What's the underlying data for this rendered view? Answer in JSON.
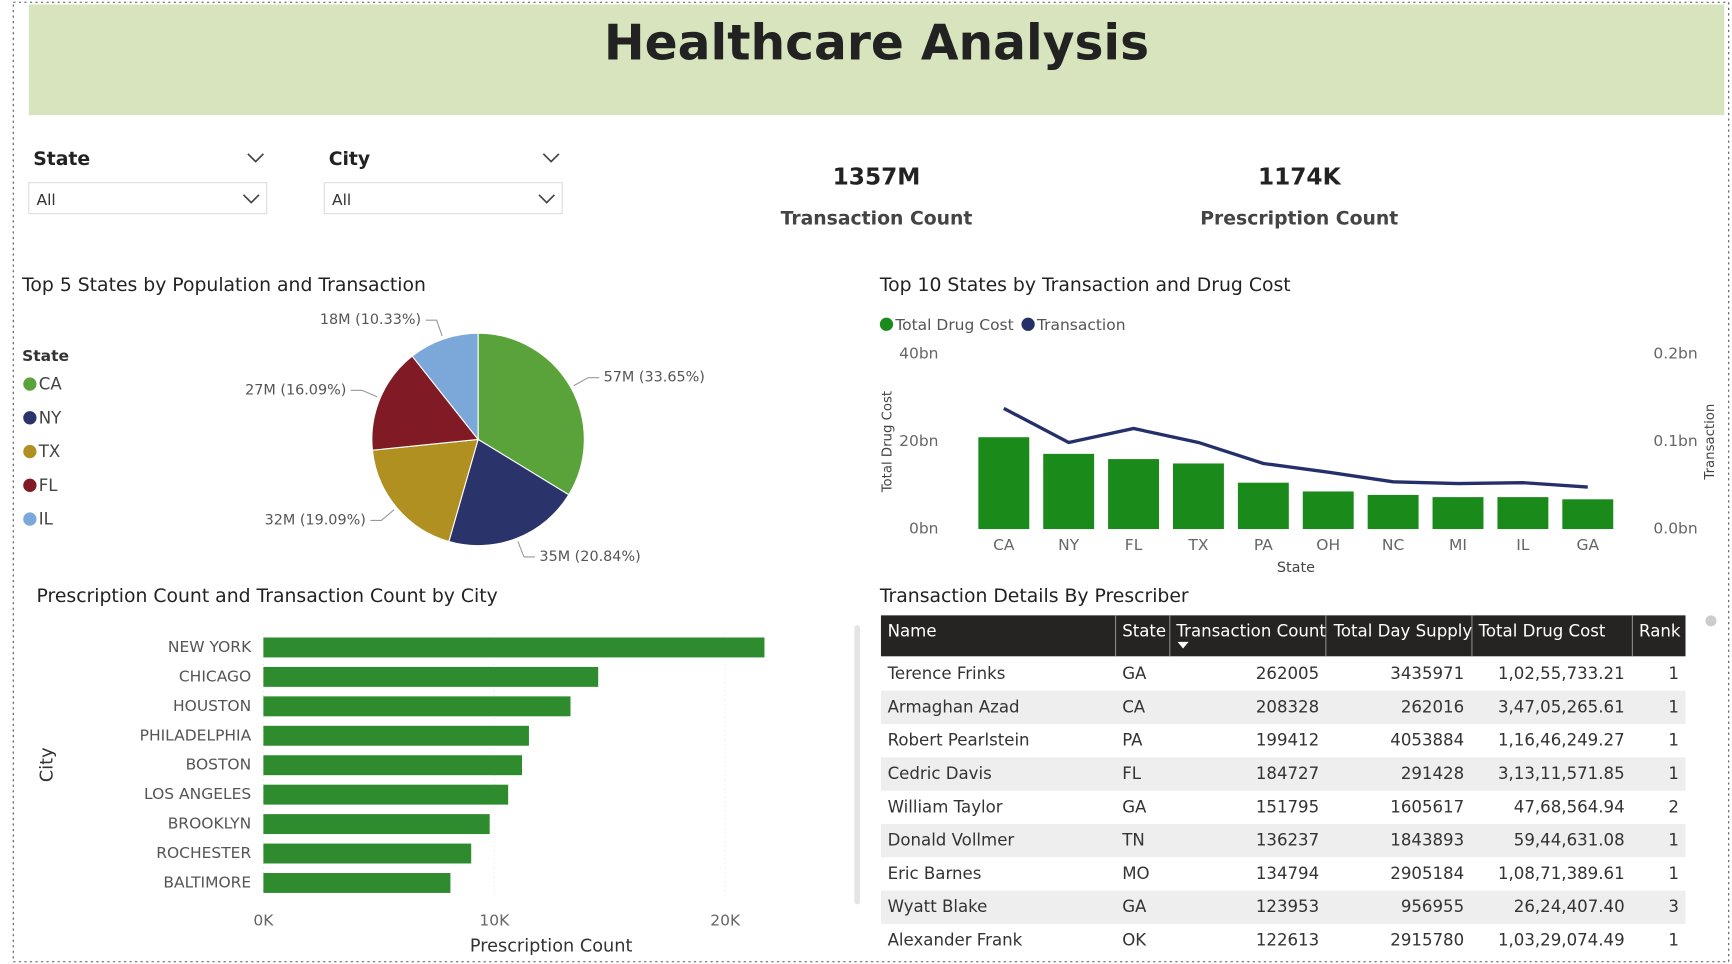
{
  "header": {
    "title": "Healthcare Analysis"
  },
  "filters": [
    {
      "label": "State",
      "value": "All"
    },
    {
      "label": "City",
      "value": "All"
    }
  ],
  "kpis": [
    {
      "value": "1357M",
      "label": "Transaction Count"
    },
    {
      "value": "1174K",
      "label": "Prescription Count"
    }
  ],
  "chart_data": [
    {
      "type": "pie",
      "title": "Top 5 States by Population and Transaction",
      "legend_title": "State",
      "categories": [
        "CA",
        "NY",
        "TX",
        "FL",
        "IL"
      ],
      "values": [
        57,
        35,
        32,
        27,
        18
      ],
      "value_labels": [
        "57M (33.65%)",
        "35M (20.84%)",
        "32M (19.09%)",
        "27M (16.09%)",
        "18M (10.33%)"
      ],
      "colors": [
        "#5aa33a",
        "#2b336b",
        "#b09020",
        "#801a24",
        "#7ba7d9"
      ],
      "legend": "left"
    },
    {
      "type": "combo",
      "title": "Top 10 States by Transaction and Drug Cost",
      "x_label": "State",
      "y_label": "Total Drug Cost",
      "y2_label": "Transaction",
      "categories": [
        "CA",
        "NY",
        "FL",
        "TX",
        "PA",
        "OH",
        "NC",
        "MI",
        "IL",
        "GA"
      ],
      "series": [
        {
          "name": "Total Drug Cost",
          "kind": "bar",
          "color": "#1a8a1a",
          "values": [
            21,
            17.2,
            16,
            15,
            10.6,
            8.6,
            7.8,
            7.3,
            7.3,
            6.8
          ]
        },
        {
          "name": "Transaction",
          "kind": "line",
          "axis": "y2",
          "color": "#25306b",
          "values": [
            0.138,
            0.099,
            0.115,
            0.099,
            0.075,
            0.065,
            0.054,
            0.052,
            0.053,
            0.048
          ]
        }
      ],
      "ylim": [
        0,
        40
      ],
      "yticks": [
        {
          "value": 0,
          "label": "0bn"
        },
        {
          "value": 20,
          "label": "20bn"
        },
        {
          "value": 40,
          "label": "40bn"
        }
      ],
      "y2lim": [
        0,
        0.2
      ],
      "y2ticks": [
        {
          "value": 0,
          "label": "0.0bn"
        },
        {
          "value": 0.1,
          "label": "0.1bn"
        },
        {
          "value": 0.2,
          "label": "0.2bn"
        }
      ],
      "legend": "top-left"
    },
    {
      "type": "hbar",
      "title": "Prescription Count and Transaction Count by City",
      "x_label": "Prescription Count",
      "y_label": "City",
      "categories": [
        "NEW YORK",
        "CHICAGO",
        "HOUSTON",
        "PHILADELPHIA",
        "BOSTON",
        "LOS ANGELES",
        "BROOKLYN",
        "ROCHESTER",
        "BALTIMORE"
      ],
      "values": [
        21700,
        14500,
        13300,
        11500,
        11200,
        10600,
        9800,
        9000,
        8100
      ],
      "color": "#2e8b2e",
      "xlim": [
        0,
        22000
      ],
      "xticks": [
        {
          "value": 0,
          "label": "0K"
        },
        {
          "value": 10000,
          "label": "10K"
        },
        {
          "value": 20000,
          "label": "20K"
        }
      ],
      "grid": true
    }
  ],
  "table": {
    "title": "Transaction Details By Prescriber",
    "columns": [
      "Name",
      "State",
      "Transaction Count",
      "Total Day Supply",
      "Total Drug Cost",
      "Rank"
    ],
    "rows": [
      [
        "Terence Frinks",
        "GA",
        262005,
        3435971,
        "1,02,55,733.21",
        1
      ],
      [
        "Armaghan Azad",
        "CA",
        208328,
        262016,
        "3,47,05,265.61",
        1
      ],
      [
        "Robert Pearlstein",
        "PA",
        199412,
        4053884,
        "1,16,46,249.27",
        1
      ],
      [
        "Cedric Davis",
        "FL",
        184727,
        291428,
        "3,13,11,571.85",
        1
      ],
      [
        "William Taylor",
        "GA",
        151795,
        1605617,
        "47,68,564.94",
        2
      ],
      [
        "Donald Vollmer",
        "TN",
        136237,
        1843893,
        "59,44,631.08",
        1
      ],
      [
        "Eric Barnes",
        "MO",
        134794,
        2905184,
        "1,08,71,389.61",
        1
      ],
      [
        "Wyatt Blake",
        "GA",
        123953,
        956955,
        "26,24,407.40",
        3
      ],
      [
        "Alexander Frank",
        "OK",
        122613,
        2915780,
        "1,03,29,074.49",
        1
      ]
    ]
  }
}
